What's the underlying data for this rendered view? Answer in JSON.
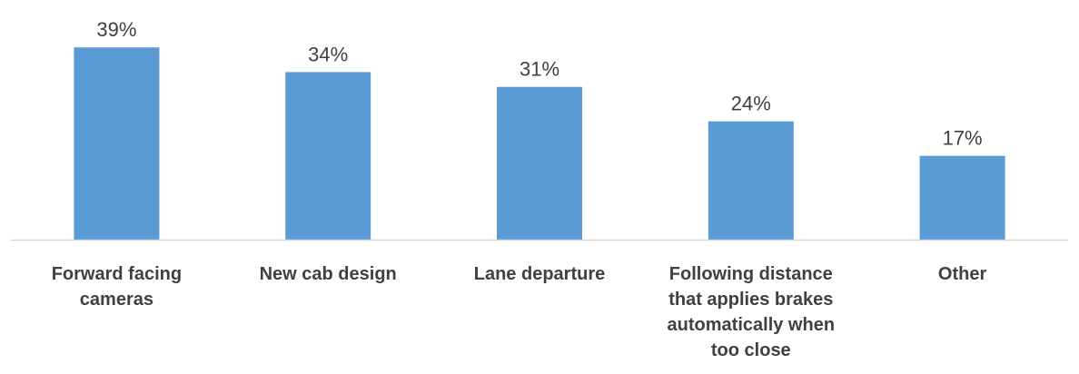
{
  "chart_data": {
    "type": "bar",
    "categories": [
      [
        "Forward facing",
        "cameras"
      ],
      [
        "New cab design"
      ],
      [
        "Lane departure"
      ],
      [
        "Following distance",
        "that applies brakes",
        "automatically when",
        "too close"
      ],
      [
        "Other"
      ]
    ],
    "values": [
      39,
      34,
      31,
      24,
      17
    ],
    "value_labels": [
      "39%",
      "34%",
      "31%",
      "24%",
      "17%"
    ],
    "title": "",
    "xlabel": "",
    "ylabel": "",
    "ylim": [
      0,
      40
    ],
    "grid": false,
    "legend": "none",
    "bar_color": "#5B9BD5",
    "axis_color": "#D9D9D9",
    "text_color": "#404040"
  }
}
